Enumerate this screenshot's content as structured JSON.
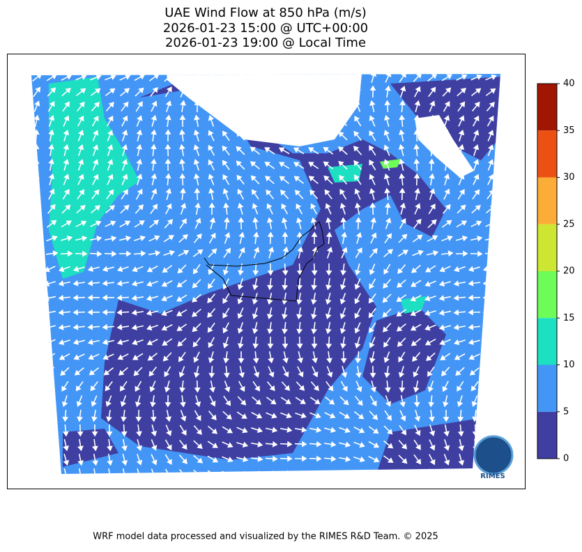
{
  "header": {
    "title_lines": [
      "UAE Wind Flow at 850 hPa (m/s)",
      "2026-01-23 15:00 @ UTC+00:00",
      "2026-01-23 19:00 @ Local Time"
    ]
  },
  "colorbar": {
    "ticks": [
      0,
      5,
      10,
      15,
      20,
      25,
      30,
      35,
      40
    ],
    "colors": [
      "#3f3fa2",
      "#4396f6",
      "#1ddfc1",
      "#6dfc58",
      "#cde632",
      "#fbad38",
      "#ec5114",
      "#a11602"
    ]
  },
  "logo": {
    "label": "RIMES"
  },
  "footer": {
    "credit": "WRF model data processed and visualized by the RIMES R&D Team. © 2025"
  }
}
